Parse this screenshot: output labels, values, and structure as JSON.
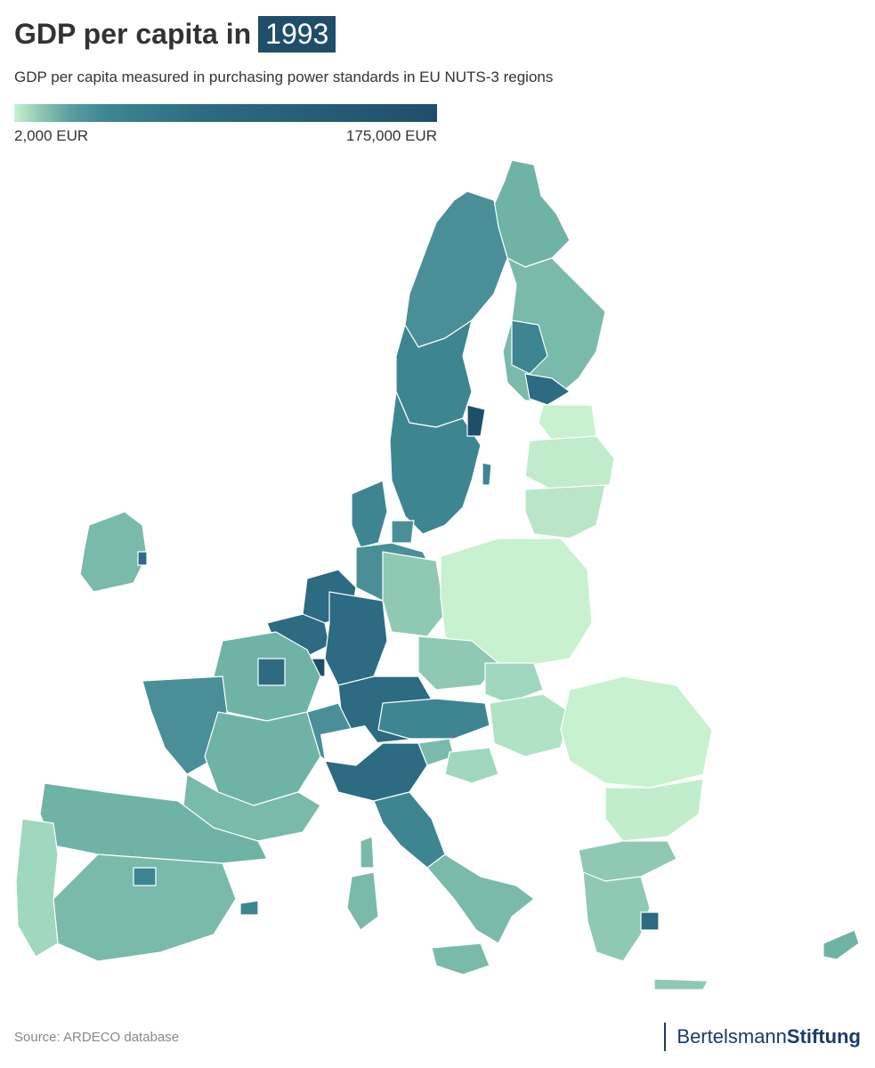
{
  "header": {
    "title_prefix": "GDP per capita in",
    "year": "1993",
    "subtitle": "GDP per capita measured in purchasing power standards in EU NUTS-3 regions"
  },
  "legend": {
    "min_label": "2,000 EUR",
    "max_label": "175,000 EUR",
    "color_low": "#c7f1cf",
    "color_high": "#1f4e6b"
  },
  "footer": {
    "source": "Source: ARDECO database",
    "brand_light": "Bertelsmann",
    "brand_bold": "Stiftung",
    "brand_color": "#1a3a6e"
  },
  "map": {
    "region_colors": {
      "very_low": "#c7f1cf",
      "low": "#9fd8bf",
      "mid": "#6fb3a7",
      "high": "#4a8f98",
      "very_high": "#2c6b82",
      "top": "#1f4e6b"
    }
  }
}
